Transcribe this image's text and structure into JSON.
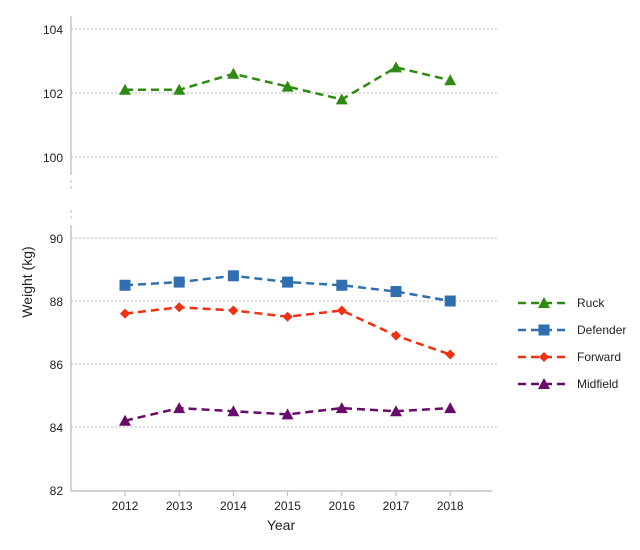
{
  "chart_data": {
    "type": "line",
    "title": "",
    "xlabel": "Year",
    "ylabel": "Weight (kg)",
    "x": [
      2012,
      2013,
      2014,
      2015,
      2016,
      2017,
      2018
    ],
    "y_axis_break": true,
    "ylim_upper": [
      100,
      104
    ],
    "ylim_lower": [
      82,
      90
    ],
    "yticks_upper": [
      100,
      102,
      104
    ],
    "yticks_lower": [
      82,
      84,
      86,
      88,
      90
    ],
    "grid": "horizontal dotted",
    "legend_placement": "right",
    "line_style": "dashed",
    "series": [
      {
        "name": "Ruck",
        "color": "#2e8b12",
        "marker": "triangle",
        "values": [
          102.1,
          102.1,
          102.6,
          102.2,
          101.8,
          102.8,
          102.4
        ]
      },
      {
        "name": "Defender",
        "color": "#2f6fb0",
        "marker": "square",
        "values": [
          88.5,
          88.6,
          88.8,
          88.6,
          88.5,
          88.3,
          88.0
        ]
      },
      {
        "name": "Forward",
        "color": "#f03010",
        "marker": "diamond",
        "values": [
          87.6,
          87.8,
          87.7,
          87.5,
          87.7,
          86.9,
          86.3
        ]
      },
      {
        "name": "Midfield",
        "color": "#6a0a6a",
        "marker": "triangle",
        "values": [
          84.2,
          84.6,
          84.5,
          84.4,
          84.6,
          84.5,
          84.6
        ]
      }
    ]
  }
}
